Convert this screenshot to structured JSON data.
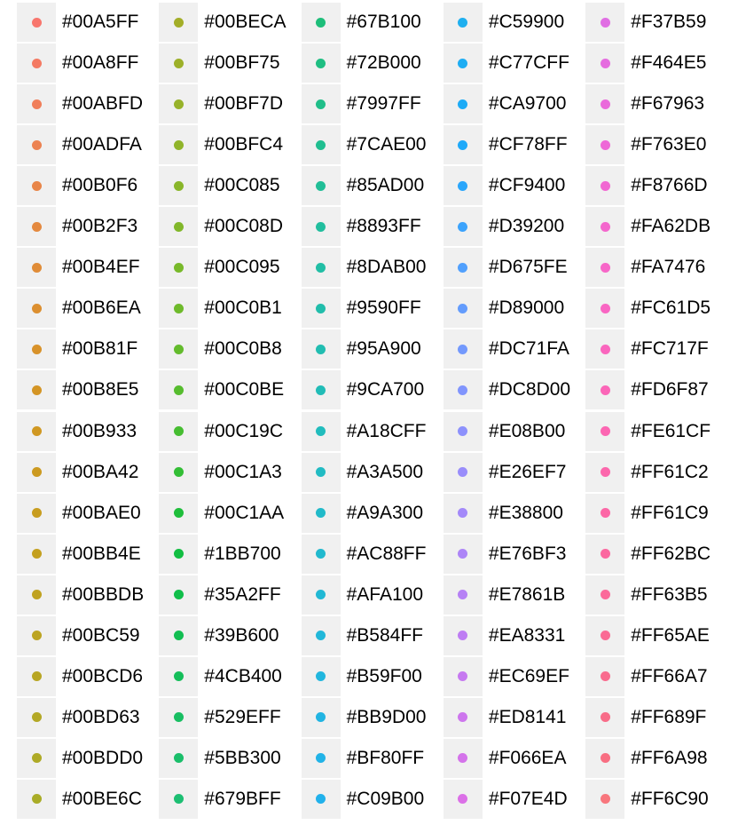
{
  "chart_data": {
    "type": "legend",
    "layout": "column-major",
    "columns": 5,
    "rows_per_column": 20,
    "key_background": "#f0f0f0",
    "entries": [
      {
        "label": "#00A5FF",
        "color": "#F8766D"
      },
      {
        "label": "#00A8FF",
        "color": "#F47A63"
      },
      {
        "label": "#00ABFD",
        "color": "#F07E5A"
      },
      {
        "label": "#00ADFA",
        "color": "#EC8251"
      },
      {
        "label": "#00B0F6",
        "color": "#E88548"
      },
      {
        "label": "#00B2F3",
        "color": "#E4893F"
      },
      {
        "label": "#00B4EF",
        "color": "#E08C37"
      },
      {
        "label": "#00B6EA",
        "color": "#DC8F30"
      },
      {
        "label": "#00B81F",
        "color": "#D8922A"
      },
      {
        "label": "#00B8E5",
        "color": "#D49525"
      },
      {
        "label": "#00B933",
        "color": "#D09822"
      },
      {
        "label": "#00BA42",
        "color": "#CC9A20"
      },
      {
        "label": "#00BAE0",
        "color": "#C89D1F"
      },
      {
        "label": "#00BB4E",
        "color": "#C4A01F"
      },
      {
        "label": "#00BBDB",
        "color": "#C0A220"
      },
      {
        "label": "#00BC59",
        "color": "#BCA421"
      },
      {
        "label": "#00BCD6",
        "color": "#B8A623"
      },
      {
        "label": "#00BD63",
        "color": "#B3A825"
      },
      {
        "label": "#00BDD0",
        "color": "#AEAA26"
      },
      {
        "label": "#00BE6C",
        "color": "#A9AC27"
      },
      {
        "label": "#00BECA",
        "color": "#A3AE28"
      },
      {
        "label": "#00BF75",
        "color": "#9DB029"
      },
      {
        "label": "#00BF7D",
        "color": "#97B22A"
      },
      {
        "label": "#00BFC4",
        "color": "#90B42A"
      },
      {
        "label": "#00C085",
        "color": "#89B62A"
      },
      {
        "label": "#00C08D",
        "color": "#81B72A"
      },
      {
        "label": "#00C095",
        "color": "#78B92A"
      },
      {
        "label": "#00C0B1",
        "color": "#6EBA2B"
      },
      {
        "label": "#00C0B8",
        "color": "#63BB2C"
      },
      {
        "label": "#00C0BE",
        "color": "#56BC2E"
      },
      {
        "label": "#00C19C",
        "color": "#46BD31"
      },
      {
        "label": "#00C1A3",
        "color": "#33BE35"
      },
      {
        "label": "#00C1AA",
        "color": "#1FBE3B"
      },
      {
        "label": "#1BB700",
        "color": "#12BE42"
      },
      {
        "label": "#35A2FF",
        "color": "#10BE4A"
      },
      {
        "label": "#39B600",
        "color": "#12BE52"
      },
      {
        "label": "#4CB400",
        "color": "#15BE5A"
      },
      {
        "label": "#529EFF",
        "color": "#18BE62"
      },
      {
        "label": "#5BB300",
        "color": "#1ABE6A"
      },
      {
        "label": "#679BFF",
        "color": "#1CBE72"
      },
      {
        "label": "#67B100",
        "color": "#1EBE7A"
      },
      {
        "label": "#72B000",
        "color": "#1FBE82"
      },
      {
        "label": "#7997FF",
        "color": "#20BE89"
      },
      {
        "label": "#7CAE00",
        "color": "#20BE90"
      },
      {
        "label": "#85AD00",
        "color": "#21BE97"
      },
      {
        "label": "#8893FF",
        "color": "#21BE9E"
      },
      {
        "label": "#8DAB00",
        "color": "#21BEA5"
      },
      {
        "label": "#9590FF",
        "color": "#21BDAB"
      },
      {
        "label": "#95A900",
        "color": "#21BDB1"
      },
      {
        "label": "#9CA700",
        "color": "#21BCB7"
      },
      {
        "label": "#A18CFF",
        "color": "#21BCBD"
      },
      {
        "label": "#A3A500",
        "color": "#21BBC3"
      },
      {
        "label": "#A9A300",
        "color": "#21BAC9"
      },
      {
        "label": "#AC88FF",
        "color": "#21B9CE"
      },
      {
        "label": "#AFA100",
        "color": "#21B8D4"
      },
      {
        "label": "#B584FF",
        "color": "#21B7D9"
      },
      {
        "label": "#B59F00",
        "color": "#21B6DE"
      },
      {
        "label": "#BB9D00",
        "color": "#21B4E2"
      },
      {
        "label": "#BF80FF",
        "color": "#21B3E7"
      },
      {
        "label": "#C09B00",
        "color": "#21B1EB"
      },
      {
        "label": "#C59900",
        "color": "#1FAFEF"
      },
      {
        "label": "#C77CFF",
        "color": "#1EADF3"
      },
      {
        "label": "#CA9700",
        "color": "#1DABF6"
      },
      {
        "label": "#CF78FF",
        "color": "#1FA9F9"
      },
      {
        "label": "#CF9400",
        "color": "#2AA6FB"
      },
      {
        "label": "#D39200",
        "color": "#3CA3FC"
      },
      {
        "label": "#D675FE",
        "color": "#51A0FD"
      },
      {
        "label": "#D89000",
        "color": "#639CFD"
      },
      {
        "label": "#DC71FA",
        "color": "#7399FD"
      },
      {
        "label": "#DC8D00",
        "color": "#8195FD"
      },
      {
        "label": "#E08B00",
        "color": "#8D91FC"
      },
      {
        "label": "#E26EF7",
        "color": "#998DFB"
      },
      {
        "label": "#E38800",
        "color": "#A389F9"
      },
      {
        "label": "#E76BF3",
        "color": "#AD85F7"
      },
      {
        "label": "#E7861B",
        "color": "#B681F5"
      },
      {
        "label": "#EA8331",
        "color": "#BE7DF3"
      },
      {
        "label": "#EC69EF",
        "color": "#C679F0"
      },
      {
        "label": "#ED8141",
        "color": "#CD76ED"
      },
      {
        "label": "#F066EA",
        "color": "#D473EA"
      },
      {
        "label": "#F07E4D",
        "color": "#DB70E7"
      },
      {
        "label": "#F37B59",
        "color": "#E06EE3"
      },
      {
        "label": "#F464E5",
        "color": "#E56CDF"
      },
      {
        "label": "#F67963",
        "color": "#EA6ADB"
      },
      {
        "label": "#F763E0",
        "color": "#EE69D7"
      },
      {
        "label": "#F8766D",
        "color": "#F168D2"
      },
      {
        "label": "#FA62DB",
        "color": "#F467CD"
      },
      {
        "label": "#FA7476",
        "color": "#F767C8"
      },
      {
        "label": "#FC61D5",
        "color": "#F966C3"
      },
      {
        "label": "#FC717F",
        "color": "#FA66BE"
      },
      {
        "label": "#FD6F87",
        "color": "#FB66B8"
      },
      {
        "label": "#FE61CF",
        "color": "#FC66B2"
      },
      {
        "label": "#FF61C2",
        "color": "#FC67AC"
      },
      {
        "label": "#FF61C9",
        "color": "#FC67A6"
      },
      {
        "label": "#FF62BC",
        "color": "#FB68A0"
      },
      {
        "label": "#FF63B5",
        "color": "#FB699A"
      },
      {
        "label": "#FF65AE",
        "color": "#FA6A94"
      },
      {
        "label": "#FF66A7",
        "color": "#F96B8E"
      },
      {
        "label": "#FF689F",
        "color": "#F86C88"
      },
      {
        "label": "#FF6A98",
        "color": "#F86E82"
      },
      {
        "label": "#FF6C90",
        "color": "#F8767D"
      }
    ]
  }
}
